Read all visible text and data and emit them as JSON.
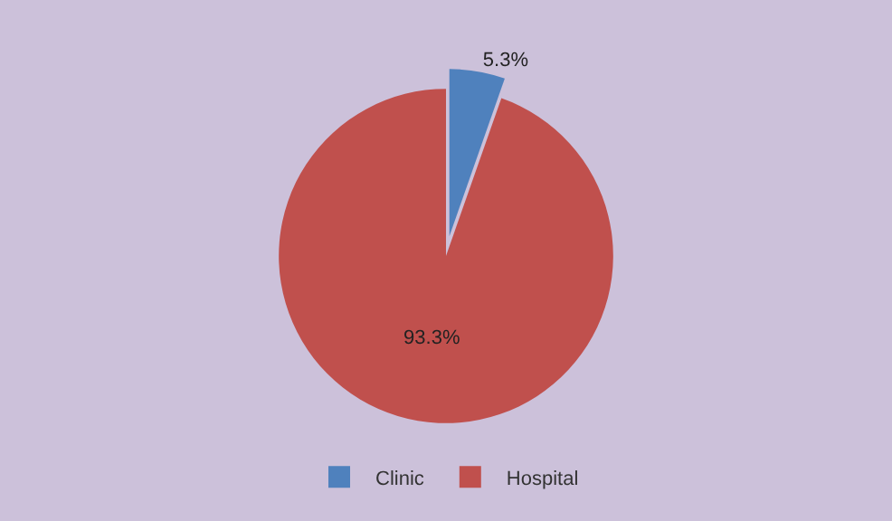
{
  "chart_data": {
    "type": "pie",
    "categories": [
      "Clinic",
      "Hospital"
    ],
    "values": [
      5.3,
      93.3
    ],
    "colors": [
      "#4f81bd",
      "#c0504d"
    ],
    "value_labels": [
      "5.3%",
      "93.3%"
    ],
    "legend": "bottom"
  }
}
